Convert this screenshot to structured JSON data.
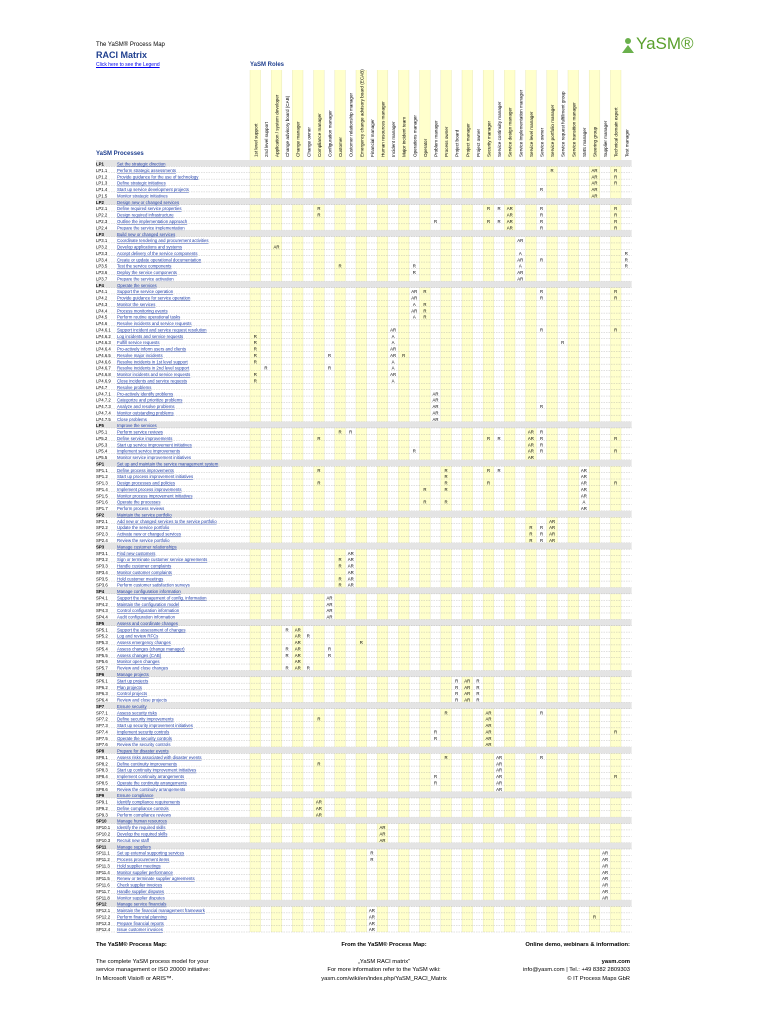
{
  "header": {
    "process_map": "The YaSM® Process Map",
    "title": "RACI Matrix",
    "legend_link": "Click here to see the Legend",
    "logo": "YaSM®",
    "roles_label": "YaSM Roles",
    "processes_label": "YaSM Processes"
  },
  "roles": [
    "1st level support",
    "2nd level support",
    "Application / system developer",
    "Change advisory board (CAB)",
    "Change manager",
    "Change owner",
    "Compliance manager",
    "Configuration manager",
    "Customer",
    "Customer relationship manager",
    "Emergency change advisory board (ECAB)",
    "Financial manager",
    "Human resources manager",
    "Incident manager",
    "Major incident team",
    "Operations manager",
    "Operator",
    "Problem manager",
    "Process owner",
    "Project board",
    "Project manager",
    "Project owner",
    "Security manager",
    "Service continuity manager",
    "Service design manager",
    "Service implementation manager",
    "Service level manager",
    "Service owner",
    "Service portfolio manager",
    "Service request fulfillment group",
    "Service transition manager",
    "SMS manager",
    "Steering group",
    "Supplier manager",
    "Technical domain expert",
    "Test manager"
  ],
  "rows": [
    {
      "id": "LP1",
      "name": "Set the strategic direction"
    },
    {
      "id": "LP1.1",
      "name": "Perform strategic assessments",
      "raci": {
        "28": "R",
        "32": "AR",
        "34": "R"
      }
    },
    {
      "id": "LP1.2",
      "name": "Provide guidance for the use of technology",
      "raci": {
        "32": "AR",
        "34": "R"
      }
    },
    {
      "id": "LP1.3",
      "name": "Define strategic initiatives",
      "raci": {
        "32": "AR",
        "34": "R"
      }
    },
    {
      "id": "LP1.4",
      "name": "Start up service development projects",
      "raci": {
        "27": "R",
        "32": "AR"
      }
    },
    {
      "id": "LP1.5",
      "name": "Monitor strategic initiatives",
      "raci": {
        "32": "AR"
      }
    },
    {
      "id": "LP2",
      "name": "Design new or changed services"
    },
    {
      "id": "LP2.1",
      "name": "Define required service properties",
      "raci": {
        "6": "R",
        "22": "R",
        "23": "R",
        "24": "AR",
        "27": "R",
        "34": "R"
      }
    },
    {
      "id": "LP2.2",
      "name": "Design required infrastructure",
      "raci": {
        "6": "R",
        "24": "AR",
        "27": "R",
        "34": "R"
      }
    },
    {
      "id": "LP2.3",
      "name": "Outline the implementation approach",
      "raci": {
        "17": "R",
        "22": "R",
        "23": "R",
        "24": "AR",
        "27": "R",
        "34": "R"
      }
    },
    {
      "id": "LP2.4",
      "name": "Prepare the service implementation",
      "raci": {
        "24": "AR",
        "27": "R",
        "34": "R"
      }
    },
    {
      "id": "LP3",
      "name": "Build new or changed services"
    },
    {
      "id": "LP3.1",
      "name": "Coordinate tendering and procurement activities",
      "raci": {
        "25": "AR"
      }
    },
    {
      "id": "LP3.2",
      "name": "Develop applications and systems",
      "raci": {
        "2": "AR"
      }
    },
    {
      "id": "LP3.3",
      "name": "Accept delivery of the service components",
      "raci": {
        "25": "A",
        "35": "R"
      }
    },
    {
      "id": "LP3.4",
      "name": "Create or update operational documentation",
      "raci": {
        "25": "AR",
        "27": "R",
        "35": "R"
      }
    },
    {
      "id": "LP3.5",
      "name": "Test the service components",
      "raci": {
        "8": "R",
        "15": "R",
        "25": "A",
        "35": "R"
      }
    },
    {
      "id": "LP3.6",
      "name": "Deploy the service components",
      "raci": {
        "15": "R",
        "25": "AR"
      }
    },
    {
      "id": "LP3.7",
      "name": "Prepare the service activation",
      "raci": {
        "25": "AR"
      }
    },
    {
      "id": "LP4",
      "name": "Operate the services"
    },
    {
      "id": "LP4.1",
      "name": "Support the service operation",
      "raci": {
        "15": "AR",
        "16": "R",
        "27": "R",
        "34": "R"
      }
    },
    {
      "id": "LP4.2",
      "name": "Provide guidance for service operation",
      "raci": {
        "15": "AR",
        "27": "R",
        "34": "R"
      }
    },
    {
      "id": "LP4.3",
      "name": "Monitor the services",
      "raci": {
        "15": "A",
        "16": "R"
      }
    },
    {
      "id": "LP4.4",
      "name": "Process monitoring events",
      "raci": {
        "15": "AR",
        "16": "R"
      }
    },
    {
      "id": "LP4.5",
      "name": "Perform routine operational tasks",
      "raci": {
        "15": "A",
        "16": "R"
      }
    },
    {
      "id": "LP4.6",
      "name": "Resolve incidents and service requests"
    },
    {
      "id": "LP4.6.1",
      "name": "Support incident and service request resolution",
      "raci": {
        "13": "AR",
        "27": "R",
        "34": "R"
      }
    },
    {
      "id": "LP4.6.2",
      "name": "Log incidents and service requests",
      "raci": {
        "0": "R",
        "13": "A"
      }
    },
    {
      "id": "LP4.6.3",
      "name": "Fulfill service requests",
      "raci": {
        "0": "R",
        "13": "A",
        "29": "R"
      }
    },
    {
      "id": "LP4.6.4",
      "name": "Pro-actively inform users and clients",
      "raci": {
        "0": "R",
        "13": "AR"
      }
    },
    {
      "id": "LP4.6.5",
      "name": "Resolve major incidents",
      "raci": {
        "0": "R",
        "7": "R",
        "13": "AR",
        "14": "R"
      }
    },
    {
      "id": "LP4.6.6",
      "name": "Resolve incidents in 1st level support",
      "raci": {
        "0": "R",
        "13": "A"
      }
    },
    {
      "id": "LP4.6.7",
      "name": "Resolve incidents in 2nd level support",
      "raci": {
        "1": "R",
        "7": "R",
        "13": "A"
      }
    },
    {
      "id": "LP4.6.8",
      "name": "Monitor incidents and service requests",
      "raci": {
        "0": "R",
        "13": "AR"
      }
    },
    {
      "id": "LP4.6.9",
      "name": "Close incidents and service requests",
      "raci": {
        "0": "R",
        "13": "A"
      }
    },
    {
      "id": "LP4.7",
      "name": "Resolve problems"
    },
    {
      "id": "LP4.7.1",
      "name": "Pro-actively identify problems",
      "raci": {
        "17": "AR"
      }
    },
    {
      "id": "LP4.7.2",
      "name": "Categorize and prioritize problems",
      "raci": {
        "17": "AR"
      }
    },
    {
      "id": "LP4.7.3",
      "name": "Analyze and resolve problems",
      "raci": {
        "17": "AR",
        "27": "R"
      }
    },
    {
      "id": "LP4.7.4",
      "name": "Monitor outstanding problems",
      "raci": {
        "17": "AR"
      }
    },
    {
      "id": "LP4.7.5",
      "name": "Close problems",
      "raci": {
        "17": "AR"
      }
    },
    {
      "id": "LP5",
      "name": "Improve the services"
    },
    {
      "id": "LP5.1",
      "name": "Perform service reviews",
      "raci": {
        "8": "R",
        "9": "R",
        "26": "AR",
        "27": "R"
      }
    },
    {
      "id": "LP5.2",
      "name": "Define service improvements",
      "raci": {
        "6": "R",
        "22": "R",
        "23": "R",
        "26": "AR",
        "27": "R",
        "34": "R"
      }
    },
    {
      "id": "LP5.3",
      "name": "Start up service improvement initiatives",
      "raci": {
        "26": "AR",
        "27": "R"
      }
    },
    {
      "id": "LP5.4",
      "name": "Implement service improvements",
      "raci": {
        "15": "R",
        "26": "AR",
        "27": "R",
        "34": "R"
      }
    },
    {
      "id": "LP5.5",
      "name": "Monitor service improvement initiatives",
      "raci": {
        "26": "AR"
      }
    },
    {
      "id": "SP1",
      "name": "Set up and maintain the service management system"
    },
    {
      "id": "SP1.1",
      "name": "Define process improvements",
      "raci": {
        "6": "R",
        "18": "R",
        "22": "R",
        "23": "R",
        "31": "AR"
      }
    },
    {
      "id": "SP1.2",
      "name": "Start up process improvement initiatives",
      "raci": {
        "18": "R",
        "31": "AR"
      }
    },
    {
      "id": "SP1.3",
      "name": "Design processes and policies",
      "raci": {
        "6": "R",
        "18": "R",
        "22": "R",
        "31": "AR",
        "34": "R"
      }
    },
    {
      "id": "SP1.4",
      "name": "Implement process improvements",
      "raci": {
        "16": "R",
        "18": "R",
        "31": "AR"
      }
    },
    {
      "id": "SP1.5",
      "name": "Monitor process improvement initiatives",
      "raci": {
        "31": "AR"
      }
    },
    {
      "id": "SP1.6",
      "name": "Operate the processes",
      "raci": {
        "16": "R",
        "18": "R",
        "31": "A"
      }
    },
    {
      "id": "SP1.7",
      "name": "Perform process reviews",
      "raci": {
        "31": "AR"
      }
    },
    {
      "id": "SP2",
      "name": "Maintain the service portfolio"
    },
    {
      "id": "SP2.1",
      "name": "Add new or changed services to the service portfolio",
      "raci": {
        "28": "AR"
      }
    },
    {
      "id": "SP2.2",
      "name": "Update the service portfolio",
      "raci": {
        "26": "R",
        "27": "R",
        "28": "AR"
      }
    },
    {
      "id": "SP2.3",
      "name": "Activate new or changed services",
      "raci": {
        "26": "R",
        "27": "R",
        "28": "AR"
      }
    },
    {
      "id": "SP2.4",
      "name": "Review the service portfolio",
      "raci": {
        "26": "R",
        "27": "R",
        "28": "AR"
      }
    },
    {
      "id": "SP3",
      "name": "Manage customer relationships"
    },
    {
      "id": "SP3.1",
      "name": "Find new customers",
      "raci": {
        "9": "AR"
      }
    },
    {
      "id": "SP3.2",
      "name": "Sign or terminate customer service agreements",
      "raci": {
        "8": "R",
        "9": "AR"
      }
    },
    {
      "id": "SP3.3",
      "name": "Handle customer complaints",
      "raci": {
        "8": "R",
        "9": "AR"
      }
    },
    {
      "id": "SP3.4",
      "name": "Monitor customer complaints",
      "raci": {
        "9": "AR"
      }
    },
    {
      "id": "SP3.5",
      "name": "Hold customer meetings",
      "raci": {
        "8": "R",
        "9": "AR"
      }
    },
    {
      "id": "SP3.6",
      "name": "Perform customer satisfaction surveys",
      "raci": {
        "8": "R",
        "9": "AR"
      }
    },
    {
      "id": "SP4",
      "name": "Manage configuration information"
    },
    {
      "id": "SP4.1",
      "name": "Support the management of config. information",
      "raci": {
        "7": "AR"
      }
    },
    {
      "id": "SP4.2",
      "name": "Maintain the configuration model",
      "raci": {
        "7": "AR"
      }
    },
    {
      "id": "SP4.3",
      "name": "Control configuration information",
      "raci": {
        "7": "AR"
      }
    },
    {
      "id": "SP4.4",
      "name": "Audit configuration information",
      "raci": {
        "7": "AR"
      }
    },
    {
      "id": "SP5",
      "name": "Assess and coordinate changes"
    },
    {
      "id": "SP5.1",
      "name": "Support the assessment of changes",
      "raci": {
        "3": "R",
        "4": "AR"
      }
    },
    {
      "id": "SP5.2",
      "name": "Log and review RFCs",
      "raci": {
        "4": "AR",
        "5": "R"
      }
    },
    {
      "id": "SP5.3",
      "name": "Assess emergency changes",
      "raci": {
        "4": "AR",
        "10": "R"
      }
    },
    {
      "id": "SP5.4",
      "name": "Assess changes (change manager)",
      "raci": {
        "3": "R",
        "4": "AR",
        "7": "R"
      }
    },
    {
      "id": "SP5.5",
      "name": "Assess changes (CAB)",
      "raci": {
        "3": "R",
        "4": "AR",
        "7": "R"
      }
    },
    {
      "id": "SP5.6",
      "name": "Monitor open changes",
      "raci": {
        "4": "AR"
      }
    },
    {
      "id": "SP5.7",
      "name": "Review and close changes",
      "raci": {
        "3": "R",
        "4": "AR",
        "5": "R"
      }
    },
    {
      "id": "SP6",
      "name": "Manage projects"
    },
    {
      "id": "SP6.1",
      "name": "Start up projects",
      "raci": {
        "19": "R",
        "20": "AR",
        "21": "R"
      }
    },
    {
      "id": "SP6.2",
      "name": "Plan projects",
      "raci": {
        "19": "R",
        "20": "AR",
        "21": "R"
      }
    },
    {
      "id": "SP6.3",
      "name": "Control projects",
      "raci": {
        "19": "R",
        "20": "AR",
        "21": "R"
      }
    },
    {
      "id": "SP6.4",
      "name": "Review and close projects",
      "raci": {
        "19": "R",
        "20": "AR",
        "21": "R"
      }
    },
    {
      "id": "SP7",
      "name": "Ensure security"
    },
    {
      "id": "SP7.1",
      "name": "Assess security risks",
      "raci": {
        "18": "R",
        "22": "AR",
        "27": "R"
      }
    },
    {
      "id": "SP7.2",
      "name": "Define security improvements",
      "raci": {
        "6": "R",
        "22": "AR"
      }
    },
    {
      "id": "SP7.3",
      "name": "Start up security improvement initiatives",
      "raci": {
        "22": "AR"
      }
    },
    {
      "id": "SP7.4",
      "name": "Implement security controls",
      "raci": {
        "17": "R",
        "22": "AR",
        "34": "R"
      }
    },
    {
      "id": "SP7.5",
      "name": "Operate the security controls",
      "raci": {
        "17": "R",
        "22": "AR"
      }
    },
    {
      "id": "SP7.6",
      "name": "Review the security controls",
      "raci": {
        "22": "AR"
      }
    },
    {
      "id": "SP8",
      "name": "Prepare for disaster events"
    },
    {
      "id": "SP8.1",
      "name": "Assess risks associated with disaster events",
      "raci": {
        "18": "R",
        "23": "AR",
        "27": "R"
      }
    },
    {
      "id": "SP8.2",
      "name": "Define continuity improvements",
      "raci": {
        "6": "R",
        "23": "AR"
      }
    },
    {
      "id": "SP8.3",
      "name": "Start up continuity improvement initiatives",
      "raci": {
        "23": "AR"
      }
    },
    {
      "id": "SP8.4",
      "name": "Implement continuity arrangements",
      "raci": {
        "17": "R",
        "23": "AR",
        "34": "R"
      }
    },
    {
      "id": "SP8.5",
      "name": "Operate the continuity arrangements",
      "raci": {
        "17": "R",
        "23": "AR"
      }
    },
    {
      "id": "SP8.6",
      "name": "Review the continuity arrangements",
      "raci": {
        "23": "AR"
      }
    },
    {
      "id": "SP9",
      "name": "Ensure compliance"
    },
    {
      "id": "SP9.1",
      "name": "Identify compliance requirements",
      "raci": {
        "6": "AR"
      }
    },
    {
      "id": "SP9.2",
      "name": "Define compliance controls",
      "raci": {
        "6": "AR"
      }
    },
    {
      "id": "SP9.3",
      "name": "Perform compliance reviews",
      "raci": {
        "6": "AR"
      }
    },
    {
      "id": "SP10",
      "name": "Manage human resources"
    },
    {
      "id": "SP10.1",
      "name": "Identify the required skills",
      "raci": {
        "12": "AR"
      }
    },
    {
      "id": "SP10.2",
      "name": "Develop the required skills",
      "raci": {
        "12": "AR"
      }
    },
    {
      "id": "SP10.3",
      "name": "Recruit new staff",
      "raci": {
        "12": "AR"
      }
    },
    {
      "id": "SP11",
      "name": "Manage suppliers"
    },
    {
      "id": "SP11.1",
      "name": "Set up external supporting services",
      "raci": {
        "11": "R",
        "33": "AR"
      }
    },
    {
      "id": "SP11.2",
      "name": "Process procurement items",
      "raci": {
        "11": "R",
        "33": "AR"
      }
    },
    {
      "id": "SP11.3",
      "name": "Hold supplier meetings",
      "raci": {
        "33": "AR"
      }
    },
    {
      "id": "SP11.4",
      "name": "Monitor supplier performance",
      "raci": {
        "33": "AR"
      }
    },
    {
      "id": "SP11.5",
      "name": "Renew or terminate supplier agreements",
      "raci": {
        "33": "AR"
      }
    },
    {
      "id": "SP11.6",
      "name": "Check supplier invoices",
      "raci": {
        "33": "AR"
      }
    },
    {
      "id": "SP11.7",
      "name": "Handle supplier disputes",
      "raci": {
        "33": "AR"
      }
    },
    {
      "id": "SP11.8",
      "name": "Monitor supplier disputes",
      "raci": {
        "33": "AR"
      }
    },
    {
      "id": "SP12",
      "name": "Manage service financials"
    },
    {
      "id": "SP12.1",
      "name": "Maintain the financial management framework",
      "raci": {
        "11": "AR"
      }
    },
    {
      "id": "SP12.2",
      "name": "Perform financial planning",
      "raci": {
        "11": "AR",
        "32": "R"
      }
    },
    {
      "id": "SP12.3",
      "name": "Prepare financial reports",
      "raci": {
        "11": "AR"
      }
    },
    {
      "id": "SP12.4",
      "name": "Issue customer invoices",
      "raci": {
        "11": "AR"
      }
    }
  ],
  "footer": {
    "left": [
      "The YaSM® Process Map:",
      "The complete YaSM process model for your",
      "service management or ISO 20000 initiative:",
      "In Microsoft Visio® or ARIS™."
    ],
    "center": [
      "From the YaSM® Process Map:",
      "„YaSM RACI matrix“",
      "For more information refer to the YaSM wiki:",
      "yasm.com/wiki/en/index.php/YaSM_RACI_Matrix"
    ],
    "right": [
      "Online demo, webinars & information:",
      "yasm.com",
      "info@yasm.com | Tel.: +49 8382 2809303",
      "© IT Process Maps GbR"
    ]
  }
}
